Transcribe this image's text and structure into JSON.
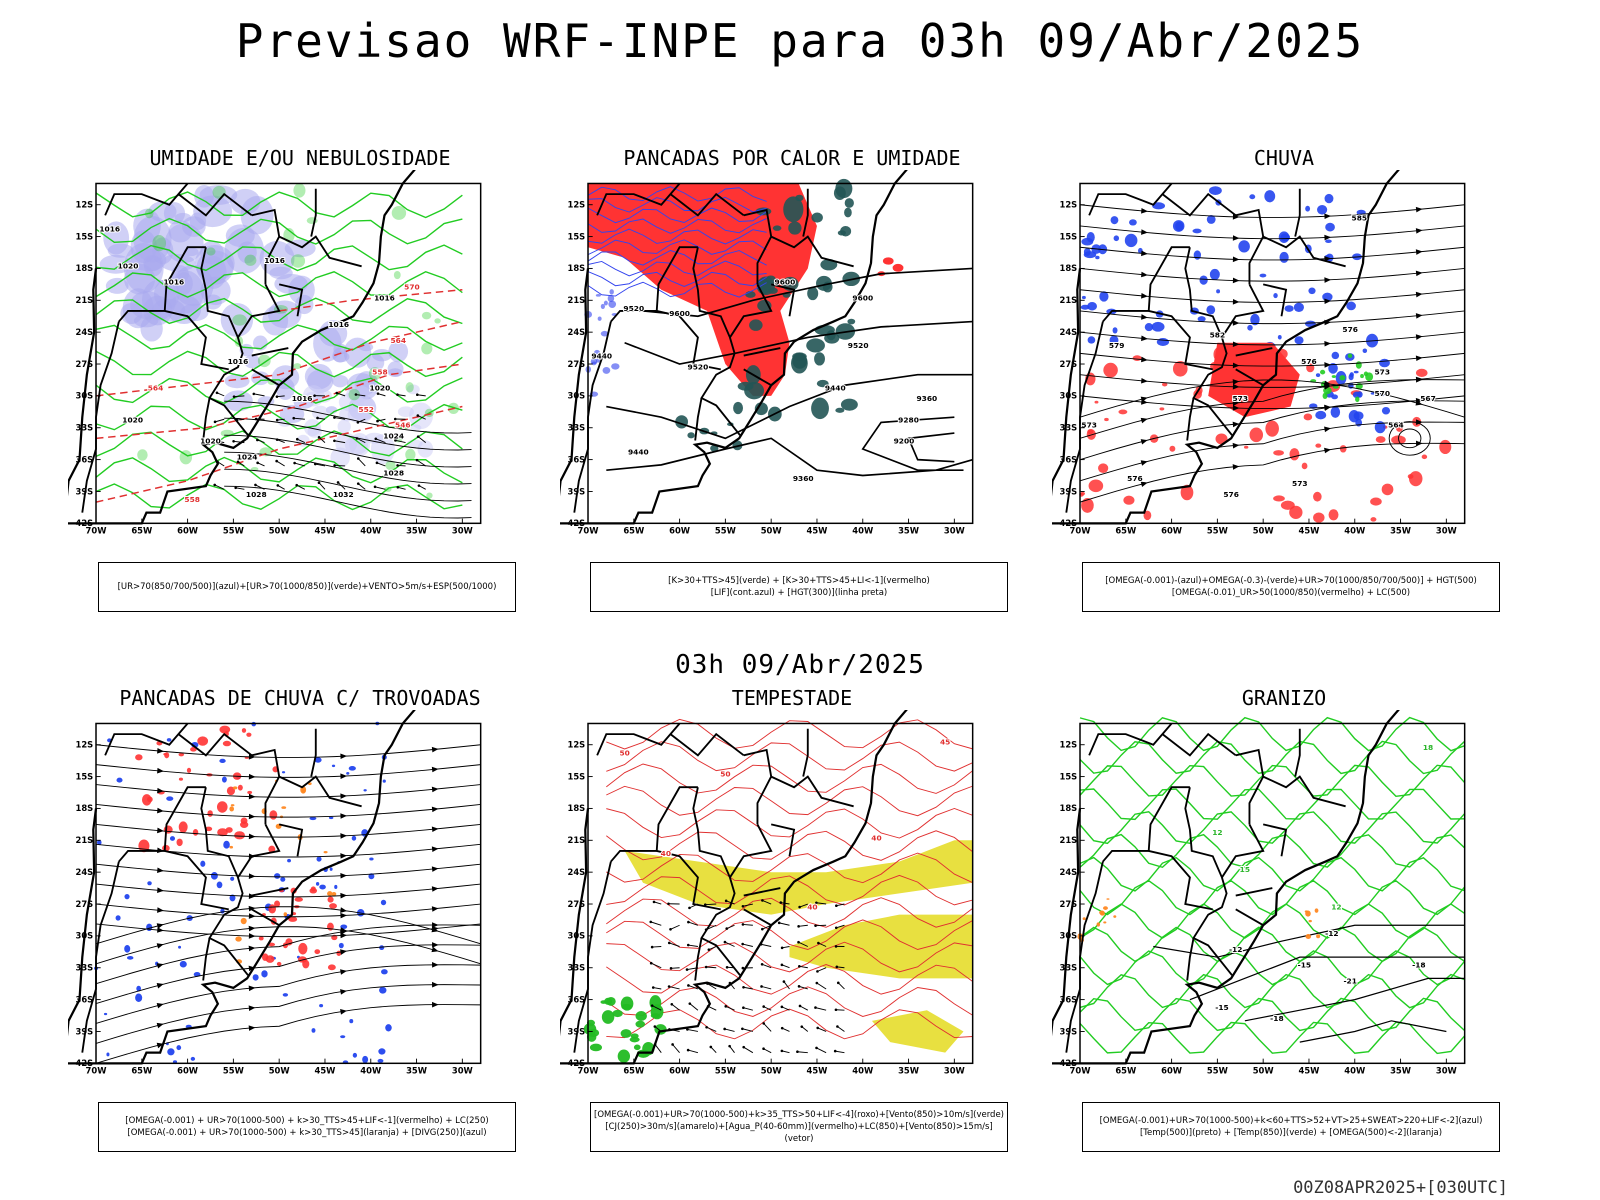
{
  "title": "Previsao WRF-INPE  para 03h 09/Abr/2025",
  "subtitle": "03h 09/Abr/2025",
  "run_info": "00Z08APR2025+[030UTC]",
  "map": {
    "lat_ticks": [
      "12S",
      "15S",
      "18S",
      "21S",
      "24S",
      "27S",
      "30S",
      "33S",
      "36S",
      "39S",
      "42S"
    ],
    "lon_ticks": [
      "70W",
      "65W",
      "60W",
      "55W",
      "50W",
      "45W",
      "40W",
      "35W",
      "30W"
    ],
    "lon_range": [
      -70,
      -28
    ],
    "lat_range": [
      -42,
      -10
    ]
  },
  "panels": [
    {
      "id": "umidade",
      "title": "UMIDADE E/OU NEBULOSIDADE",
      "legend": [
        "[UR>70(850/700/500)](azul)+[UR>70(1000/850)](verde)+VENTO>5m/s+ESP(500/1000)"
      ],
      "contour_labels": [
        {
          "text": "1016",
          "lon": -68.5,
          "lat": -14.5,
          "color": "#000"
        },
        {
          "text": "1020",
          "lon": -66.5,
          "lat": -18.0,
          "color": "#000"
        },
        {
          "text": "1016",
          "lon": -61.5,
          "lat": -19.5,
          "color": "#000"
        },
        {
          "text": "1016",
          "lon": -50.5,
          "lat": -17.5,
          "color": "#000"
        },
        {
          "text": "1016",
          "lon": -43.5,
          "lat": -23.5,
          "color": "#000"
        },
        {
          "text": "1016",
          "lon": -38.5,
          "lat": -21.0,
          "color": "#000"
        },
        {
          "text": "1016",
          "lon": -54.5,
          "lat": -27.0,
          "color": "#000"
        },
        {
          "text": "1016",
          "lon": -47.5,
          "lat": -30.5,
          "color": "#000"
        },
        {
          "text": "1020",
          "lon": -39.0,
          "lat": -29.5,
          "color": "#000"
        },
        {
          "text": "1020",
          "lon": -66.0,
          "lat": -32.5,
          "color": "#000"
        },
        {
          "text": "1020",
          "lon": -57.5,
          "lat": -34.5,
          "color": "#000"
        },
        {
          "text": "1024",
          "lon": -53.5,
          "lat": -36.0,
          "color": "#000"
        },
        {
          "text": "1024",
          "lon": -37.5,
          "lat": -34.0,
          "color": "#000"
        },
        {
          "text": "1028",
          "lon": -37.5,
          "lat": -37.5,
          "color": "#000"
        },
        {
          "text": "1028",
          "lon": -52.5,
          "lat": -39.5,
          "color": "#000"
        },
        {
          "text": "1032",
          "lon": -43.0,
          "lat": -39.5,
          "color": "#000"
        },
        {
          "text": "570",
          "lon": -35.5,
          "lat": -20.0,
          "color": "#e03030"
        },
        {
          "text": "564",
          "lon": -37.0,
          "lat": -25.0,
          "color": "#e03030"
        },
        {
          "text": "558",
          "lon": -39.0,
          "lat": -28.0,
          "color": "#e03030"
        },
        {
          "text": "552",
          "lon": -40.5,
          "lat": -31.5,
          "color": "#e03030"
        },
        {
          "text": "546",
          "lon": -36.5,
          "lat": -33.0,
          "color": "#e03030"
        },
        {
          "text": "564",
          "lon": -63.5,
          "lat": -29.5,
          "color": "#e03030"
        },
        {
          "text": "558",
          "lon": -59.5,
          "lat": -40.0,
          "color": "#e03030"
        }
      ]
    },
    {
      "id": "pancadas-calor",
      "title": "PANCADAS POR CALOR E UMIDADE",
      "legend": [
        "[K>30+TTS>45](verde) + [K>30+TTS>45+LI<-1](vermelho)",
        "[LIF](cont.azul) + [HGT(300)](linha preta)"
      ],
      "contour_labels": [
        {
          "text": "9520",
          "lon": -65.0,
          "lat": -22.0,
          "color": "#000"
        },
        {
          "text": "9600",
          "lon": -60.0,
          "lat": -22.5,
          "color": "#000"
        },
        {
          "text": "9600",
          "lon": -48.5,
          "lat": -19.5,
          "color": "#000"
        },
        {
          "text": "9600",
          "lon": -40.0,
          "lat": -21.0,
          "color": "#000"
        },
        {
          "text": "9520",
          "lon": -40.5,
          "lat": -25.5,
          "color": "#000"
        },
        {
          "text": "9520",
          "lon": -58.0,
          "lat": -27.5,
          "color": "#000"
        },
        {
          "text": "9440",
          "lon": -68.5,
          "lat": -26.5,
          "color": "#000"
        },
        {
          "text": "9440",
          "lon": -43.0,
          "lat": -29.5,
          "color": "#000"
        },
        {
          "text": "9360",
          "lon": -33.0,
          "lat": -30.5,
          "color": "#000"
        },
        {
          "text": "9280",
          "lon": -35.0,
          "lat": -32.5,
          "color": "#000"
        },
        {
          "text": "9200",
          "lon": -35.5,
          "lat": -34.5,
          "color": "#000"
        },
        {
          "text": "9440",
          "lon": -64.5,
          "lat": -35.5,
          "color": "#000"
        },
        {
          "text": "9360",
          "lon": -46.5,
          "lat": -38.0,
          "color": "#000"
        }
      ]
    },
    {
      "id": "chuva",
      "title": "CHUVA",
      "legend": [
        "[OMEGA(-0.001)-(azul)+OMEGA(-0.3)-(verde)+UR>70(1000/850/700/500)] + HGT(500)",
        "[OMEGA(-0.01)_UR>50(1000/850)(vermelho) + LC(500)"
      ],
      "contour_labels": [
        {
          "text": "585",
          "lon": -39.5,
          "lat": -13.5,
          "color": "#000"
        },
        {
          "text": "582",
          "lon": -55.0,
          "lat": -24.5,
          "color": "#000"
        },
        {
          "text": "579",
          "lon": -66.0,
          "lat": -25.5,
          "color": "#000"
        },
        {
          "text": "576",
          "lon": -40.5,
          "lat": -24.0,
          "color": "#000"
        },
        {
          "text": "576",
          "lon": -45.0,
          "lat": -27.0,
          "color": "#000"
        },
        {
          "text": "573",
          "lon": -37.0,
          "lat": -28.0,
          "color": "#000"
        },
        {
          "text": "570",
          "lon": -37.0,
          "lat": -30.0,
          "color": "#000"
        },
        {
          "text": "567",
          "lon": -32.0,
          "lat": -30.5,
          "color": "#000"
        },
        {
          "text": "564",
          "lon": -35.5,
          "lat": -33.0,
          "color": "#000"
        },
        {
          "text": "573",
          "lon": -52.5,
          "lat": -30.5,
          "color": "#000"
        },
        {
          "text": "576",
          "lon": -64.0,
          "lat": -38.0,
          "color": "#000"
        },
        {
          "text": "573",
          "lon": -46.0,
          "lat": -38.5,
          "color": "#000"
        },
        {
          "text": "576",
          "lon": -53.5,
          "lat": -39.5,
          "color": "#000"
        },
        {
          "text": "573",
          "lon": -69.0,
          "lat": -33.0,
          "color": "#000"
        }
      ]
    },
    {
      "id": "pancadas-trovoadas",
      "title": "PANCADAS DE CHUVA C/ TROVOADAS",
      "legend": [
        "[OMEGA(-0.001) + UR>70(1000-500) + k>30_TTS>45+LIF<-1](vermelho) + LC(250)",
        "[OMEGA(-0.001) + UR>70(1000-500) + k>30_TTS>45](laranja) + [DIVG(250)](azul)"
      ],
      "contour_labels": []
    },
    {
      "id": "tempestade",
      "title": "TEMPESTADE",
      "legend": [
        "[OMEGA(-0.001)+UR>70(1000-500)+k>35_TTS>50+LIF<-4](roxo)+[Vento(850)>10m/s](verde)",
        "[CJ(250)>30m/s](amarelo)+[Agua_P(40-60mm)](vermelho)+LC(850)+[Vento(850)>15m/s](vetor)"
      ],
      "contour_labels": [
        {
          "text": "50",
          "lon": -66.0,
          "lat": -13.0,
          "color": "#e03030"
        },
        {
          "text": "50",
          "lon": -55.0,
          "lat": -15.0,
          "color": "#e03030"
        },
        {
          "text": "40",
          "lon": -61.5,
          "lat": -22.5,
          "color": "#e03030"
        },
        {
          "text": "40",
          "lon": -38.5,
          "lat": -21.0,
          "color": "#e03030"
        },
        {
          "text": "45",
          "lon": -31.0,
          "lat": -12.0,
          "color": "#e03030"
        },
        {
          "text": "40",
          "lon": -45.5,
          "lat": -27.5,
          "color": "#e03030"
        }
      ]
    },
    {
      "id": "granizo",
      "title": "GRANIZO",
      "legend": [
        "[OMEGA(-0.001)+UR>70(1000-500)+k<60+TTS>52+VT>25+SWEAT>220+LIF<-2](azul)",
        "[Temp(500)](preto) + [Temp(850)](verde) + [OMEGA(500)<-2](laranja)"
      ],
      "contour_labels": [
        {
          "text": "-12",
          "lon": -42.5,
          "lat": -30.0,
          "color": "#000"
        },
        {
          "text": "-12",
          "lon": -53.0,
          "lat": -31.5,
          "color": "#000"
        },
        {
          "text": "-15",
          "lon": -45.5,
          "lat": -33.0,
          "color": "#000"
        },
        {
          "text": "-18",
          "lon": -33.0,
          "lat": -33.0,
          "color": "#000"
        },
        {
          "text": "-21",
          "lon": -40.5,
          "lat": -34.5,
          "color": "#000"
        },
        {
          "text": "-15",
          "lon": -54.5,
          "lat": -37.0,
          "color": "#000"
        },
        {
          "text": "-18",
          "lon": -48.5,
          "lat": -38.0,
          "color": "#000"
        },
        {
          "text": "12",
          "lon": -55.0,
          "lat": -20.5,
          "color": "#2bb52b"
        },
        {
          "text": "15",
          "lon": -52.0,
          "lat": -24.0,
          "color": "#2bb52b"
        },
        {
          "text": "12",
          "lon": -42.0,
          "lat": -27.5,
          "color": "#2bb52b"
        },
        {
          "text": "18",
          "lon": -32.0,
          "lat": -12.5,
          "color": "#2bb52b"
        }
      ]
    }
  ]
}
